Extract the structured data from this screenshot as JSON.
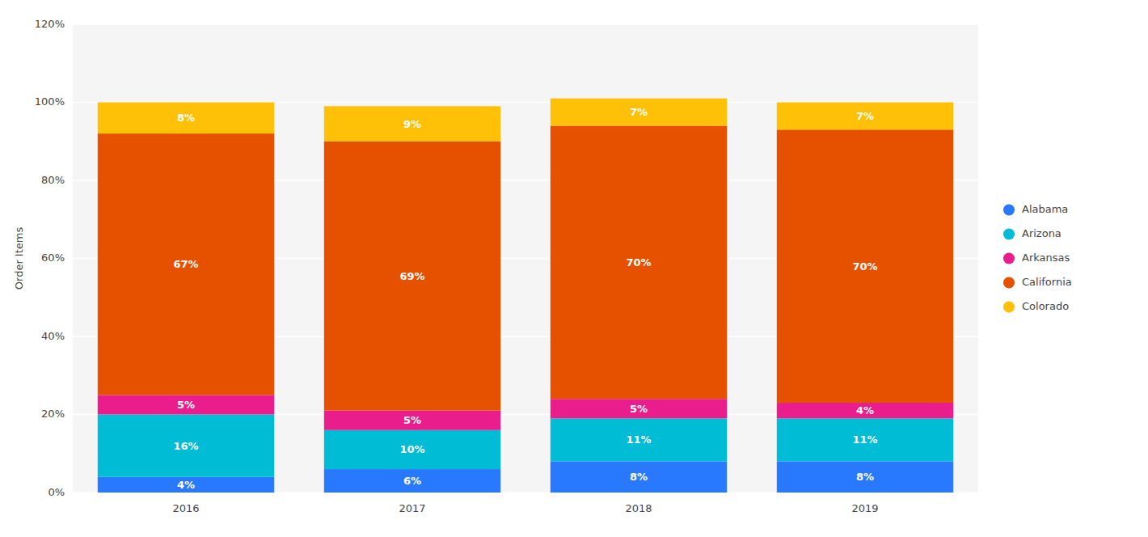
{
  "chart_data": {
    "type": "bar",
    "stacked": true,
    "categories": [
      "2016",
      "2017",
      "2018",
      "2019"
    ],
    "series": [
      {
        "name": "Alabama",
        "color": "#2979FF",
        "values": [
          4,
          6,
          8,
          8
        ],
        "value_labels": [
          "4%",
          "6%",
          "8%",
          "8%"
        ]
      },
      {
        "name": "Arizona",
        "color": "#00BCD4",
        "values": [
          16,
          10,
          11,
          11
        ],
        "value_labels": [
          "16%",
          "10%",
          "11%",
          "11%"
        ]
      },
      {
        "name": "Arkansas",
        "color": "#E91E8C",
        "values": [
          5,
          5,
          5,
          4
        ],
        "value_labels": [
          "5%",
          "5%",
          "5%",
          "4%"
        ]
      },
      {
        "name": "California",
        "color": "#E65100",
        "values": [
          67,
          69,
          70,
          70
        ],
        "value_labels": [
          "67%",
          "69%",
          "70%",
          "70%"
        ]
      },
      {
        "name": "Colorado",
        "color": "#FFC107",
        "values": [
          8,
          9,
          7,
          7
        ],
        "value_labels": [
          "8%",
          "9%",
          "7%",
          "7%"
        ]
      }
    ],
    "ylabel": "Order Items",
    "ylim": [
      0,
      120
    ],
    "yticks": [
      {
        "value": 0,
        "label": "0%"
      },
      {
        "value": 20,
        "label": "20%"
      },
      {
        "value": 40,
        "label": "40%"
      },
      {
        "value": 60,
        "label": "60%"
      },
      {
        "value": 80,
        "label": "80%"
      },
      {
        "value": 100,
        "label": "100%"
      },
      {
        "value": 120,
        "label": "120%"
      }
    ],
    "grid": true,
    "data_labels": true,
    "legend": "right"
  }
}
